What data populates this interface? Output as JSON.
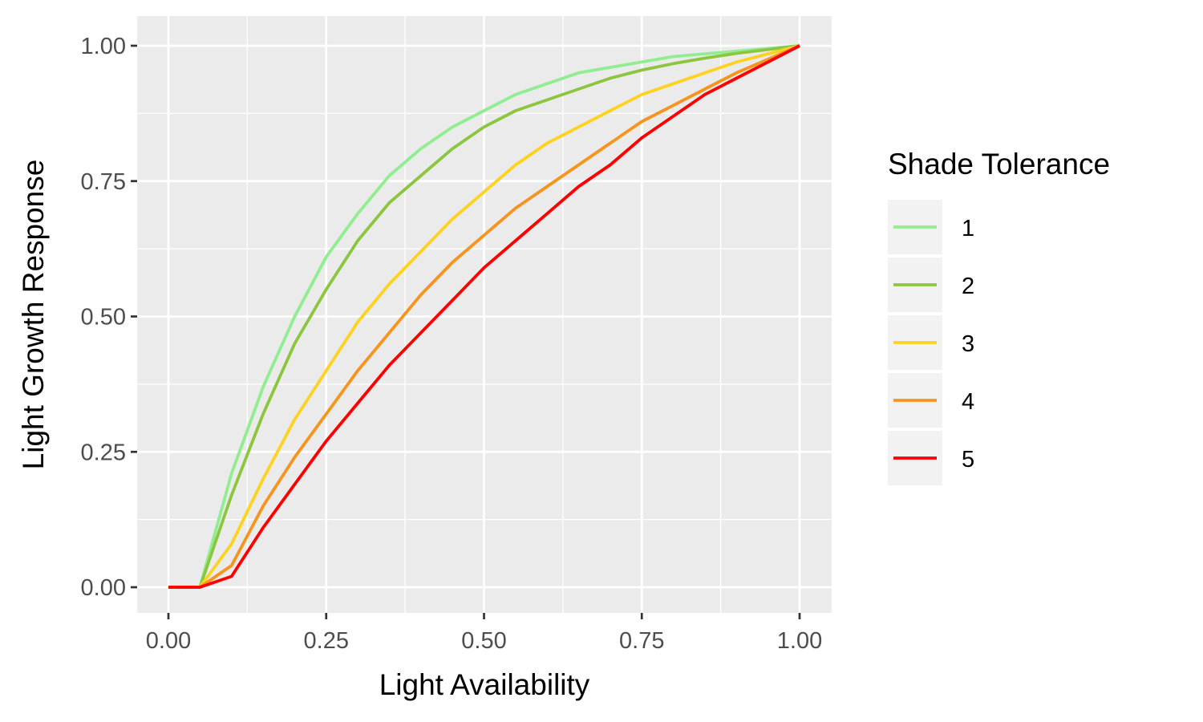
{
  "chart_data": {
    "type": "line",
    "title": "",
    "xlabel": "Light Availability",
    "ylabel": "Light Growth Response",
    "xlim": [
      0,
      1
    ],
    "ylim": [
      0,
      1
    ],
    "x_ticks": [
      "0.00",
      "0.25",
      "0.50",
      "0.75",
      "1.00"
    ],
    "y_ticks": [
      "0.00",
      "0.25",
      "0.50",
      "0.75",
      "1.00"
    ],
    "grid": true,
    "legend": {
      "title": "Shade Tolerance",
      "position": "right"
    },
    "x": [
      0,
      0.05,
      0.1,
      0.15,
      0.2,
      0.25,
      0.3,
      0.35,
      0.4,
      0.45,
      0.5,
      0.55,
      0.6,
      0.65,
      0.7,
      0.75,
      0.8,
      0.85,
      0.9,
      0.95,
      1.0
    ],
    "series": [
      {
        "name": "1",
        "color": "#90EE90",
        "values": [
          0,
          0,
          0.21,
          0.37,
          0.5,
          0.61,
          0.69,
          0.76,
          0.81,
          0.85,
          0.88,
          0.91,
          0.93,
          0.95,
          0.96,
          0.97,
          0.98,
          0.985,
          0.99,
          0.995,
          1.0
        ]
      },
      {
        "name": "2",
        "color": "#8CC63E",
        "values": [
          0,
          0,
          0.17,
          0.32,
          0.45,
          0.55,
          0.64,
          0.71,
          0.76,
          0.81,
          0.85,
          0.88,
          0.9,
          0.92,
          0.94,
          0.955,
          0.967,
          0.977,
          0.986,
          0.993,
          1.0
        ]
      },
      {
        "name": "3",
        "color": "#FFD21F",
        "values": [
          0,
          0,
          0.08,
          0.2,
          0.31,
          0.4,
          0.49,
          0.56,
          0.62,
          0.68,
          0.73,
          0.78,
          0.82,
          0.85,
          0.88,
          0.91,
          0.93,
          0.95,
          0.97,
          0.985,
          1.0
        ]
      },
      {
        "name": "4",
        "color": "#F7941D",
        "values": [
          0,
          0,
          0.04,
          0.15,
          0.24,
          0.32,
          0.4,
          0.47,
          0.54,
          0.6,
          0.65,
          0.7,
          0.74,
          0.78,
          0.82,
          0.86,
          0.89,
          0.92,
          0.95,
          0.975,
          1.0
        ]
      },
      {
        "name": "5",
        "color": "#FF0000",
        "values": [
          0,
          0,
          0.02,
          0.11,
          0.19,
          0.27,
          0.34,
          0.41,
          0.47,
          0.53,
          0.59,
          0.64,
          0.69,
          0.74,
          0.78,
          0.83,
          0.87,
          0.91,
          0.94,
          0.97,
          1.0
        ]
      }
    ]
  }
}
